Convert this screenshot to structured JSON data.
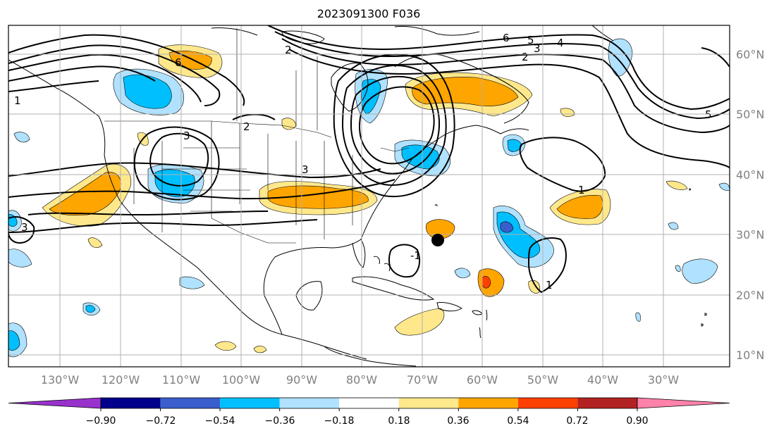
{
  "title": "2023091300 F036",
  "map": {
    "lon_ticks": [
      "130°W",
      "120°W",
      "110°W",
      "100°W",
      "90°W",
      "80°W",
      "70°W",
      "60°W",
      "50°W",
      "40°W",
      "30°W"
    ],
    "lat_ticks": [
      "60°N",
      "50°N",
      "40°N",
      "30°N",
      "20°N",
      "10°N"
    ],
    "contour_labels": [
      "6",
      "5",
      "4",
      "2",
      "3",
      "2",
      "1",
      "3",
      "2",
      "3",
      "6",
      "5",
      "1",
      "-1",
      "1",
      "3"
    ],
    "storm_marker": "storm-center"
  },
  "colorbar": {
    "ticks": [
      "−0.90",
      "−0.72",
      "−0.54",
      "−0.36",
      "−0.18",
      "0.18",
      "0.36",
      "0.54",
      "0.72",
      "0.90"
    ],
    "colors": [
      "#9932cc",
      "#00008b",
      "#3a5fcd",
      "#00bfff",
      "#b0e2ff",
      "#ffffff",
      "#ffe88c",
      "#ffa500",
      "#ff3f00",
      "#b22222",
      "#ff82ab"
    ],
    "under_color": "#9932cc",
    "over_color": "#ff82ab"
  }
}
